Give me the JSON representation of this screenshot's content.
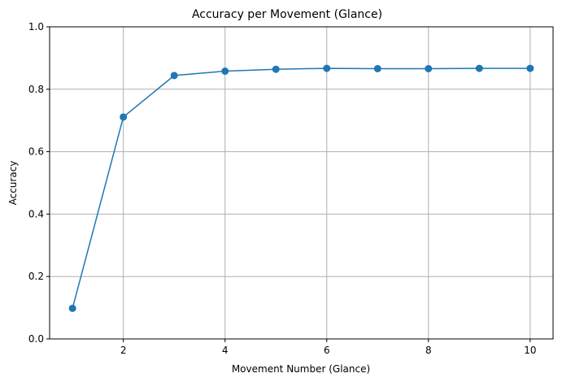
{
  "chart_data": {
    "type": "line",
    "title": "Accuracy per Movement (Glance)",
    "xlabel": "Movement Number (Glance)",
    "ylabel": "Accuracy",
    "xlim": [
      0.55,
      10.45
    ],
    "ylim": [
      0.0,
      1.0
    ],
    "xticks": [
      2,
      4,
      6,
      8,
      10
    ],
    "xtick_labels": [
      "2",
      "4",
      "6",
      "8",
      "10"
    ],
    "yticks": [
      0.0,
      0.2,
      0.4,
      0.6,
      0.8,
      1.0
    ],
    "ytick_labels": [
      "0.0",
      "0.2",
      "0.4",
      "0.6",
      "0.8",
      "1.0"
    ],
    "grid": true,
    "marker": "circle",
    "color": "#1f77b4",
    "x": [
      1,
      2,
      3,
      4,
      5,
      6,
      7,
      8,
      9,
      10
    ],
    "y": [
      0.098,
      0.711,
      0.844,
      0.858,
      0.864,
      0.867,
      0.866,
      0.866,
      0.867,
      0.867
    ]
  }
}
